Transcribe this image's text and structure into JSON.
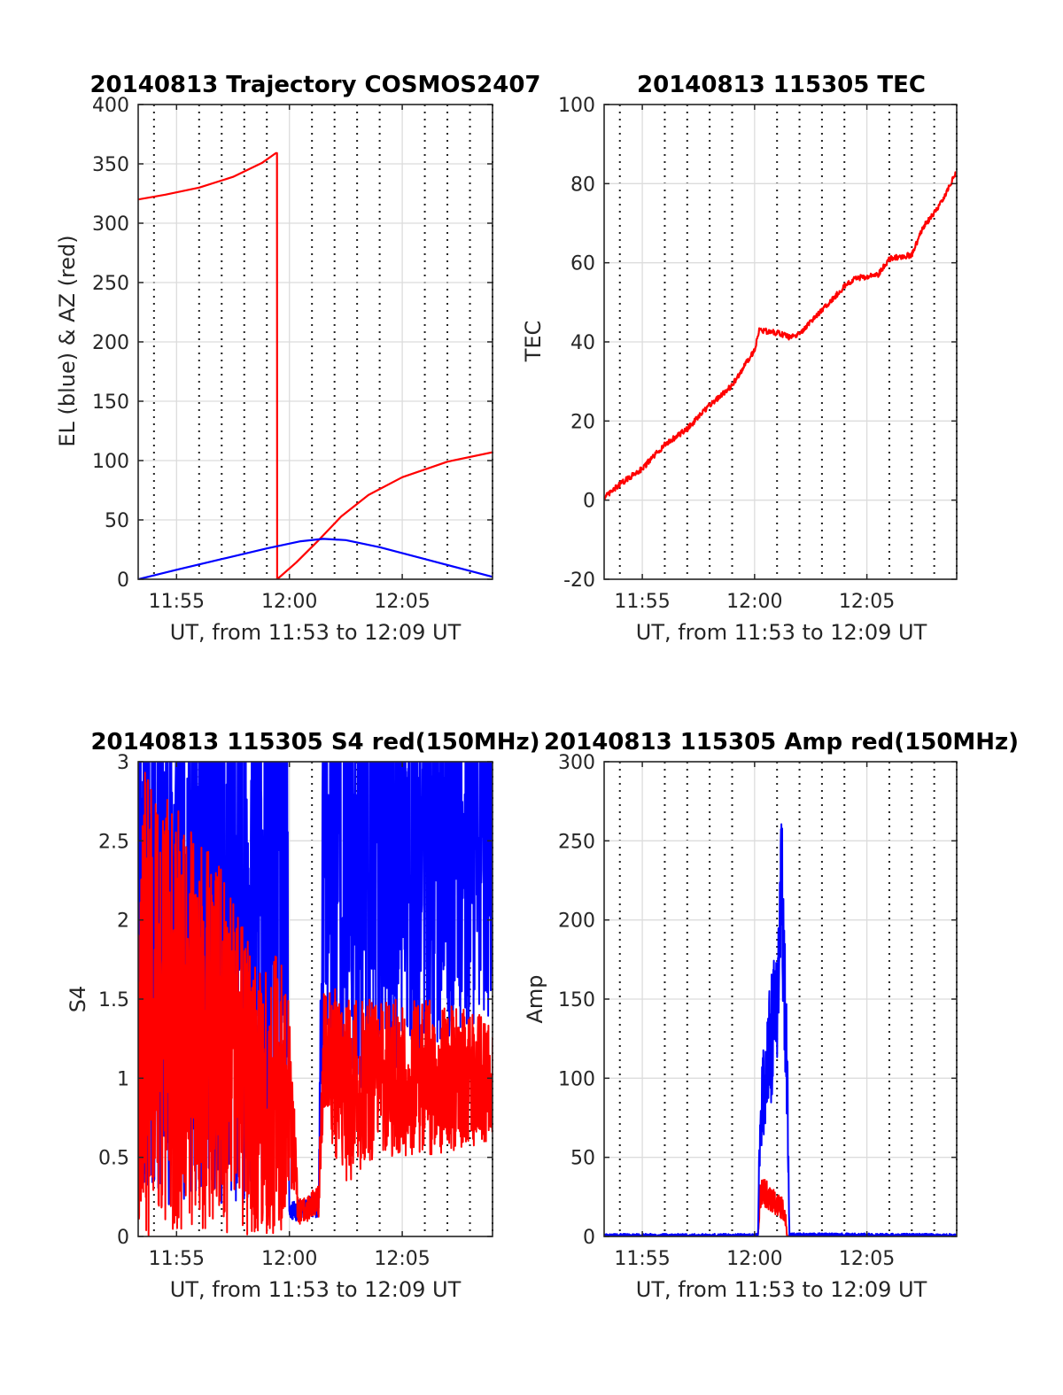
{
  "figure": {
    "background": "#ffffff"
  },
  "colors": {
    "el": "#0000ff",
    "az": "#ff0000",
    "red": "#ff0000",
    "blue": "#0000ff"
  },
  "chart_data": [
    {
      "id": "traj",
      "type": "line",
      "title": "20140813 Trajectory COSMOS2407",
      "xlabel": "UT, from 11:53 to 12:09 UT",
      "ylabel": "EL (blue) & AZ (red)",
      "xlim_min": [
        713.3,
        729.0
      ],
      "ylim": [
        0,
        400
      ],
      "yticks": [
        0,
        50,
        100,
        150,
        200,
        250,
        300,
        350,
        400
      ],
      "xticks_min": [
        715,
        720,
        725
      ],
      "xtick_labels": [
        "11:55",
        "12:00",
        "12:05"
      ],
      "grid": true,
      "minor_x_grid": "dotted, every minute",
      "series": [
        {
          "color": "red",
          "style": "smooth",
          "x": [
            713.3,
            714.5,
            716,
            717.5,
            718.8,
            719.4,
            719.45,
            719.46,
            720.3,
            721.3,
            722.3,
            723.5,
            725,
            727,
            729
          ],
          "y": [
            320,
            324,
            330,
            339,
            351,
            359,
            359,
            0,
            14,
            33,
            53,
            71,
            86,
            99,
            107
          ]
        },
        {
          "color": "blue",
          "style": "smooth",
          "x": [
            713.3,
            715,
            717,
            719,
            720.5,
            721.5,
            722.5,
            724,
            726,
            728,
            729
          ],
          "y": [
            0,
            8,
            17,
            26,
            32,
            34,
            33,
            27,
            17,
            7,
            2
          ]
        }
      ]
    },
    {
      "id": "tec",
      "type": "line",
      "title": "20140813 115305 TEC",
      "xlabel": "UT, from 11:53 to 12:09 UT",
      "ylabel": "TEC",
      "xlim_min": [
        713.3,
        729.0
      ],
      "ylim": [
        -20,
        100
      ],
      "yticks": [
        -20,
        0,
        20,
        40,
        60,
        80,
        100
      ],
      "xticks_min": [
        715,
        720,
        725
      ],
      "xtick_labels": [
        "11:55",
        "12:00",
        "12:05"
      ],
      "grid": true,
      "minor_x_grid": "dotted, every minute",
      "series": [
        {
          "color": "red",
          "style": "noisy",
          "noise": 0.7,
          "x": [
            713.3,
            714,
            715,
            716,
            717,
            718,
            719,
            720,
            720.2,
            721.2,
            721.6,
            722,
            723,
            724,
            724.5,
            725.5,
            726,
            727,
            727.5,
            728.2,
            729
          ],
          "y": [
            0.5,
            4,
            8,
            14,
            18,
            24,
            29,
            38,
            43,
            42,
            41,
            42,
            48,
            54,
            56,
            57,
            61,
            62,
            69,
            74,
            83
          ]
        }
      ]
    },
    {
      "id": "s4",
      "type": "line",
      "title": "20140813 115305 S4 red(150MHz)",
      "xlabel": "UT, from 11:53 to 12:09 UT",
      "ylabel": "S4",
      "xlim_min": [
        713.3,
        729.0
      ],
      "ylim": [
        0,
        3
      ],
      "yticks": [
        0,
        0.5,
        1,
        1.5,
        2,
        2.5,
        3
      ],
      "ytick_labels": [
        "0",
        "0.5",
        "1",
        "1.5",
        "2",
        "2.5",
        "3"
      ],
      "xticks_min": [
        715,
        720,
        725
      ],
      "xtick_labels": [
        "11:55",
        "12:00",
        "12:05"
      ],
      "grid": true,
      "minor_x_grid": "dotted, every minute",
      "series": [
        {
          "color": "blue",
          "style": "spiky",
          "seed": 11,
          "x": [
            713.3,
            719.9,
            720.0,
            721.3,
            721.5,
            729.0
          ],
          "y": [
            2.2,
            2.2,
            0.15,
            0.2,
            2.4,
            2.6
          ],
          "spread": [
            2.0,
            2.0,
            0.06,
            0.08,
            1.6,
            1.2
          ]
        },
        {
          "color": "red",
          "style": "spiky",
          "seed": 37,
          "x": [
            713.3,
            716.8,
            718.5,
            719.6,
            720.0,
            720.4,
            721.3,
            721.5,
            722.5,
            724,
            726,
            729
          ],
          "y": [
            1.5,
            1.2,
            0.9,
            0.9,
            0.9,
            0.15,
            0.22,
            1.2,
            0.9,
            1.0,
            1.0,
            1.0
          ],
          "spread": [
            1.5,
            1.2,
            0.9,
            0.9,
            0.6,
            0.08,
            0.1,
            0.45,
            0.6,
            0.5,
            0.5,
            0.4
          ]
        }
      ]
    },
    {
      "id": "amp",
      "type": "line",
      "title": "20140813 115305 Amp red(150MHz)",
      "xlabel": "UT, from 11:53 to 12:09 UT",
      "ylabel": "Amp",
      "xlim_min": [
        713.3,
        729.0
      ],
      "ylim": [
        0,
        300
      ],
      "yticks": [
        0,
        50,
        100,
        150,
        200,
        250,
        300
      ],
      "xticks_min": [
        715,
        720,
        725
      ],
      "xtick_labels": [
        "11:55",
        "12:00",
        "12:05"
      ],
      "grid": true,
      "minor_x_grid": "dotted, every minute",
      "series": [
        {
          "color": "red",
          "style": "spiky",
          "seed": 5,
          "x": [
            713.3,
            720.15,
            720.25,
            720.7,
            721.1,
            721.35,
            721.45,
            729.0
          ],
          "y": [
            0,
            0,
            28,
            25,
            20,
            15,
            0,
            0
          ],
          "spread": [
            0.5,
            0.5,
            10,
            9,
            8,
            6,
            0.5,
            0.5
          ]
        },
        {
          "color": "blue",
          "style": "spiky",
          "seed": 23,
          "x": [
            713.3,
            720.15,
            720.25,
            720.6,
            721.0,
            721.2,
            721.45,
            721.55,
            729.0
          ],
          "y": [
            0.5,
            0.5,
            80,
            110,
            150,
            220,
            100,
            1,
            0.5
          ],
          "spread": [
            1.2,
            1.2,
            25,
            40,
            40,
            55,
            30,
            1.2,
            1.2
          ]
        }
      ]
    }
  ]
}
